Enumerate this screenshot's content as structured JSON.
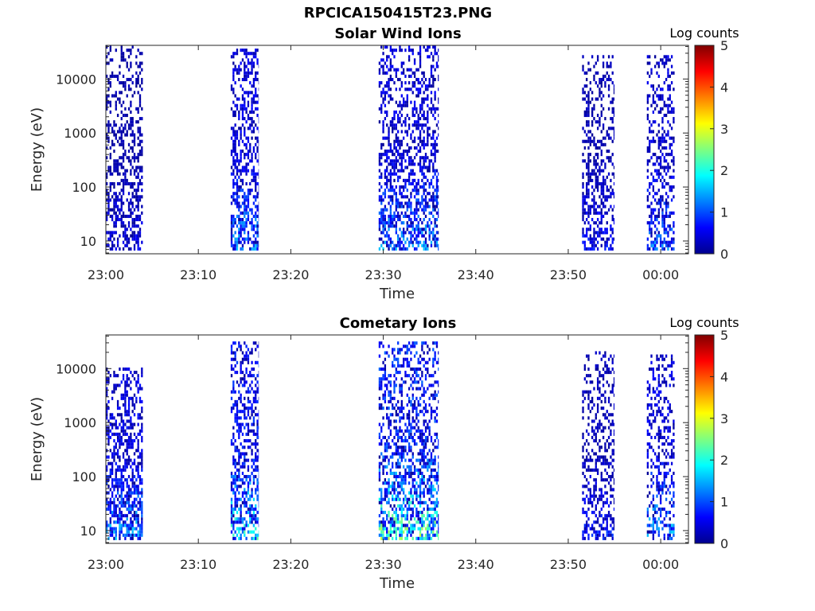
{
  "figure": {
    "title": "RPCICA150415T23.PNG"
  },
  "chart_data": [
    {
      "type": "heatmap",
      "title": "Solar Wind Ions",
      "xlabel": "Time",
      "ylabel": "Energy (eV)",
      "xscale": "time",
      "yscale": "log",
      "xlim": [
        "23:00",
        "00:03"
      ],
      "ylim": [
        5.8,
        42000
      ],
      "x_ticks": [
        "23:00",
        "23:10",
        "23:20",
        "23:30",
        "23:40",
        "23:50",
        "00:00"
      ],
      "y_ticks": [
        "10",
        "100",
        "1000",
        "10000"
      ],
      "colorbar": {
        "label": "Log counts",
        "range": [
          0,
          5
        ],
        "ticks": [
          "0",
          "1",
          "2",
          "3",
          "4",
          "5"
        ],
        "colormap": "jet"
      },
      "bursts": [
        {
          "start": "23:00",
          "end": "23:04",
          "emin": 6,
          "emax": 40000,
          "density": 0.45,
          "peak_log_counts": 0.6
        },
        {
          "start": "23:13.5",
          "end": "23:16.5",
          "emin": 6,
          "emax": 35000,
          "density": 0.55,
          "peak_log_counts": 1.6
        },
        {
          "start": "23:29.5",
          "end": "23:36",
          "emin": 6,
          "emax": 40000,
          "density": 0.5,
          "peak_log_counts": 1.6
        },
        {
          "start": "23:51.5",
          "end": "23:55",
          "emin": 6,
          "emax": 25000,
          "density": 0.45,
          "peak_log_counts": 0.8
        },
        {
          "start": "23:58.5",
          "end": "00:01.5",
          "emin": 6,
          "emax": 25000,
          "density": 0.45,
          "peak_log_counts": 1.4
        }
      ]
    },
    {
      "type": "heatmap",
      "title": "Cometary Ions",
      "xlabel": "Time",
      "ylabel": "Energy (eV)",
      "xscale": "time",
      "yscale": "log",
      "xlim": [
        "23:00",
        "00:03"
      ],
      "ylim": [
        5.8,
        42000
      ],
      "x_ticks": [
        "23:00",
        "23:10",
        "23:20",
        "23:30",
        "23:40",
        "23:50",
        "00:00"
      ],
      "y_ticks": [
        "10",
        "100",
        "1000",
        "10000"
      ],
      "colorbar": {
        "label": "Log counts",
        "range": [
          0,
          5
        ],
        "ticks": [
          "0",
          "1",
          "2",
          "3",
          "4",
          "5"
        ],
        "colormap": "jet"
      },
      "bursts": [
        {
          "start": "23:00",
          "end": "23:04",
          "emin": 6,
          "emax": 10000,
          "density": 0.6,
          "peak_log_counts": 1.8
        },
        {
          "start": "23:13.5",
          "end": "23:16.5",
          "emin": 6,
          "emax": 30000,
          "density": 0.55,
          "peak_log_counts": 2.4
        },
        {
          "start": "23:29.5",
          "end": "23:36",
          "emin": 6,
          "emax": 30000,
          "density": 0.55,
          "peak_log_counts": 2.9
        },
        {
          "start": "23:51.5",
          "end": "23:55",
          "emin": 6,
          "emax": 20000,
          "density": 0.4,
          "peak_log_counts": 0.9
        },
        {
          "start": "23:58.5",
          "end": "00:01.5",
          "emin": 6,
          "emax": 18000,
          "density": 0.4,
          "peak_log_counts": 1.8
        }
      ]
    }
  ]
}
